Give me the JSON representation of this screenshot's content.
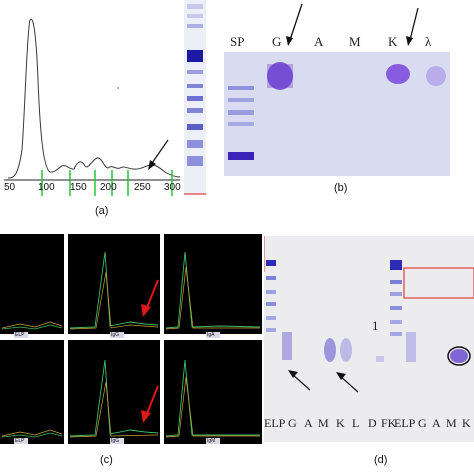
{
  "panel_a": {
    "caption": "(a)",
    "x_ticks": [
      "50",
      "100",
      "150",
      "200",
      "250",
      "300"
    ]
  },
  "panel_b": {
    "caption": "(b)",
    "lane_labels": [
      "SP",
      "G",
      "A",
      "M",
      "K",
      "λ"
    ]
  },
  "panel_c": {
    "caption": "(c)",
    "cell_labels": [
      "ELP",
      "IgG",
      "IgA",
      "ELP",
      "IgG",
      "IgM"
    ]
  },
  "panel_d": {
    "caption": "(d)",
    "lane_labels": [
      "ELP",
      "G",
      "A",
      "M",
      "K",
      "L",
      "D",
      "FK",
      "ELP",
      "G",
      "A",
      "M",
      "K"
    ],
    "marker": "1"
  },
  "colors": {
    "trace": "#3a3a3a",
    "tick_green": "#27c43a",
    "gel_bg": "#d9dcf0",
    "band": "#6a3fd0",
    "arrow_red": "#e01818",
    "box_red": "#e04040",
    "screen_bg": "#000000"
  }
}
